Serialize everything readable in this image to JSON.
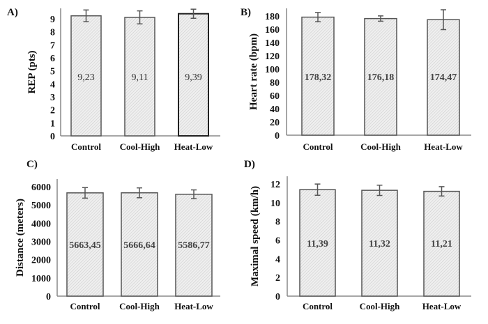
{
  "figure": {
    "bar_fill_color": "#ececec",
    "bar_stroke_color": "#555555",
    "axis_color": "#888888"
  },
  "chart_data": [
    {
      "panel": "A)",
      "type": "bar",
      "categories": [
        "Control",
        "Cool-High",
        "Heat-Low"
      ],
      "values": [
        9.23,
        9.11,
        9.39
      ],
      "errors": [
        0.45,
        0.5,
        0.35
      ],
      "data_labels": [
        "9,23",
        "9,11",
        "9,39"
      ],
      "ylabel": "REP (pts)",
      "xlabel": "",
      "ylim": [
        0,
        9
      ],
      "yticks": [
        0,
        1,
        2,
        3,
        4,
        5,
        6,
        7,
        8,
        9
      ],
      "grid": false,
      "legend": "none"
    },
    {
      "panel": "B)",
      "type": "bar",
      "categories": [
        "Control",
        "Cool-High",
        "Heat-Low"
      ],
      "values": [
        178.32,
        176.18,
        174.47
      ],
      "errors": [
        7,
        4,
        15
      ],
      "data_labels": [
        "178,32",
        "176,18",
        "174,47"
      ],
      "ylabel": "Heart rate (bpm)",
      "xlabel": "",
      "ylim": [
        0,
        180
      ],
      "yticks": [
        0,
        20,
        40,
        60,
        80,
        100,
        120,
        140,
        160,
        180
      ],
      "grid": false,
      "legend": "none"
    },
    {
      "panel": "C)",
      "type": "bar",
      "categories": [
        "Control",
        "Cool-High",
        "Heat-Low"
      ],
      "values": [
        5663.45,
        5666.64,
        5586.77
      ],
      "errors": [
        290,
        270,
        240
      ],
      "data_labels": [
        "5663,45",
        "5666,64",
        "5586,77"
      ],
      "ylabel": "Distance (meters)",
      "xlabel": "",
      "ylim": [
        0,
        6000
      ],
      "yticks": [
        0,
        1000,
        2000,
        3000,
        4000,
        5000,
        6000
      ],
      "grid": false,
      "legend": "none"
    },
    {
      "panel": "D)",
      "type": "bar",
      "categories": [
        "Control",
        "Cool-High",
        "Heat-Low"
      ],
      "values": [
        11.39,
        11.32,
        11.21
      ],
      "errors": [
        0.6,
        0.55,
        0.5
      ],
      "data_labels": [
        "11,39",
        "11,32",
        "11,21"
      ],
      "ylabel": "Maximal speed (km/h)",
      "xlabel": "",
      "ylim": [
        0,
        12
      ],
      "yticks": [
        0,
        2,
        4,
        6,
        8,
        10,
        12
      ],
      "grid": false,
      "legend": "none"
    }
  ]
}
